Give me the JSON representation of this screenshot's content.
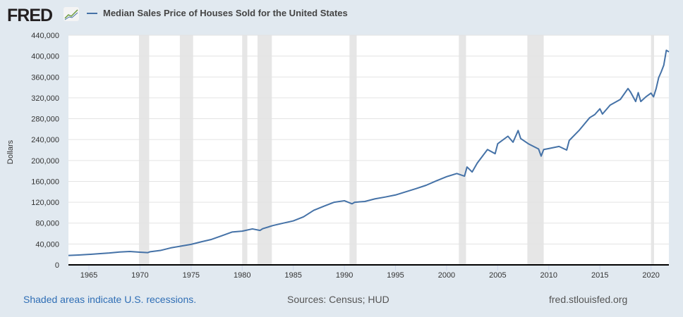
{
  "header": {
    "logo": "FRED",
    "title": "Median Sales Price of Houses Sold for the United States"
  },
  "footer": {
    "recession_note": "Shaded areas indicate U.S. recessions.",
    "sources": "Sources: Census; HUD",
    "site": "fred.stlouisfed.org"
  },
  "colors": {
    "line": "#4572a7",
    "recession": "#e6e6e6",
    "background": "#e1e9f0",
    "link": "#2f6eb5"
  },
  "chart_data": {
    "type": "line",
    "title": "Median Sales Price of Houses Sold for the United States",
    "ylabel": "Dollars",
    "xlabel": "",
    "ylim": [
      0,
      440000
    ],
    "xlim": [
      1963,
      2021.75
    ],
    "yticks": [
      "0",
      "40,000",
      "80,000",
      "120,000",
      "160,000",
      "200,000",
      "240,000",
      "280,000",
      "320,000",
      "360,000",
      "400,000",
      "440,000"
    ],
    "xticks": [
      "1965",
      "1970",
      "1975",
      "1980",
      "1985",
      "1990",
      "1995",
      "2000",
      "2005",
      "2010",
      "2015",
      "2020"
    ],
    "grid": true,
    "recessions": [
      [
        1969.9,
        1970.9
      ],
      [
        1973.9,
        1975.2
      ],
      [
        1980.0,
        1980.5
      ],
      [
        1981.5,
        1982.9
      ],
      [
        1990.5,
        1991.2
      ],
      [
        2001.2,
        2001.9
      ],
      [
        2007.9,
        2009.5
      ],
      [
        2020.0,
        2020.3
      ]
    ],
    "series": [
      {
        "name": "Median Sales Price of Houses Sold for the United States",
        "x": [
          1963,
          1964,
          1965,
          1966,
          1967,
          1968,
          1969,
          1970,
          1970.75,
          1971,
          1972,
          1973,
          1974,
          1975,
          1976,
          1977,
          1978,
          1979,
          1980,
          1981,
          1981.75,
          1982,
          1983,
          1984,
          1985,
          1986,
          1987,
          1988,
          1989,
          1990,
          1990.75,
          1991,
          1992,
          1993,
          1994,
          1995,
          1996,
          1997,
          1998,
          1999,
          2000,
          2001,
          2001.75,
          2002,
          2002.5,
          2003,
          2004,
          2004.75,
          2005,
          2006,
          2006.5,
          2007,
          2007.25,
          2008,
          2009,
          2009.25,
          2009.5,
          2010,
          2011,
          2011.75,
          2012,
          2013,
          2014,
          2014.5,
          2015,
          2015.25,
          2016,
          2017,
          2017.75,
          2018,
          2018.5,
          2018.75,
          2019,
          2019.5,
          2020,
          2020.25,
          2020.5,
          2020.75,
          2021,
          2021.25,
          2021.5,
          2021.75
        ],
        "y": [
          18000,
          18900,
          20000,
          21400,
          22700,
          24700,
          25600,
          24300,
          23400,
          25200,
          27600,
          32500,
          35900,
          39300,
          44200,
          48800,
          55700,
          62900,
          64600,
          68900,
          66000,
          69300,
          75300,
          79900,
          84300,
          92000,
          104500,
          112500,
          120000,
          122900,
          117000,
          120000,
          121500,
          126500,
          130000,
          133900,
          140000,
          146000,
          152500,
          161000,
          169000,
          175000,
          170000,
          187500,
          178000,
          195000,
          221000,
          213000,
          232000,
          246500,
          235000,
          257400,
          242000,
          232000,
          222000,
          208400,
          221000,
          222900,
          226900,
          220000,
          238400,
          258400,
          282000,
          288000,
          299000,
          289000,
          306000,
          317000,
          337900,
          331000,
          313000,
          330000,
          313000,
          322000,
          329000,
          322000,
          337500,
          358700,
          369800,
          382600,
          411200,
          408100
        ]
      }
    ]
  }
}
